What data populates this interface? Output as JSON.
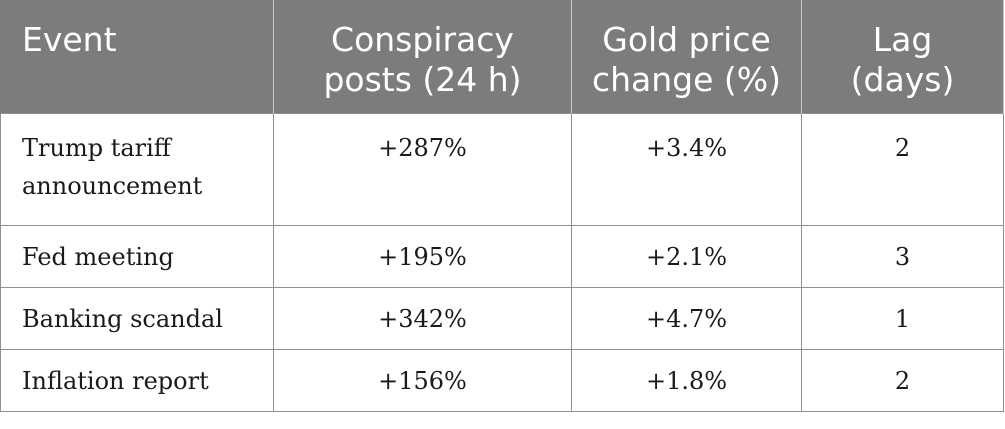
{
  "table": {
    "headers": [
      [
        "Event"
      ],
      [
        "Conspiracy",
        "posts (24 h)"
      ],
      [
        "Gold price",
        "change (%)"
      ],
      [
        "Lag",
        "(days)"
      ]
    ],
    "rows": [
      {
        "event": [
          "Trump tariff",
          "announcement"
        ],
        "posts": "+287%",
        "gold": "+3.4%",
        "lag": "2"
      },
      {
        "event": [
          "Fed meeting"
        ],
        "posts": "+195%",
        "gold": "+2.1%",
        "lag": "3"
      },
      {
        "event": [
          "Banking scandal"
        ],
        "posts": "+342%",
        "gold": "+4.7%",
        "lag": "1"
      },
      {
        "event": [
          "Inflation report"
        ],
        "posts": "+156%",
        "gold": "+1.8%",
        "lag": "2"
      }
    ]
  },
  "colors": {
    "header_background": "#7c7c7b",
    "header_text": "#ffffff",
    "border": "#8f8f8f",
    "body_text": "#1a1a1a"
  }
}
